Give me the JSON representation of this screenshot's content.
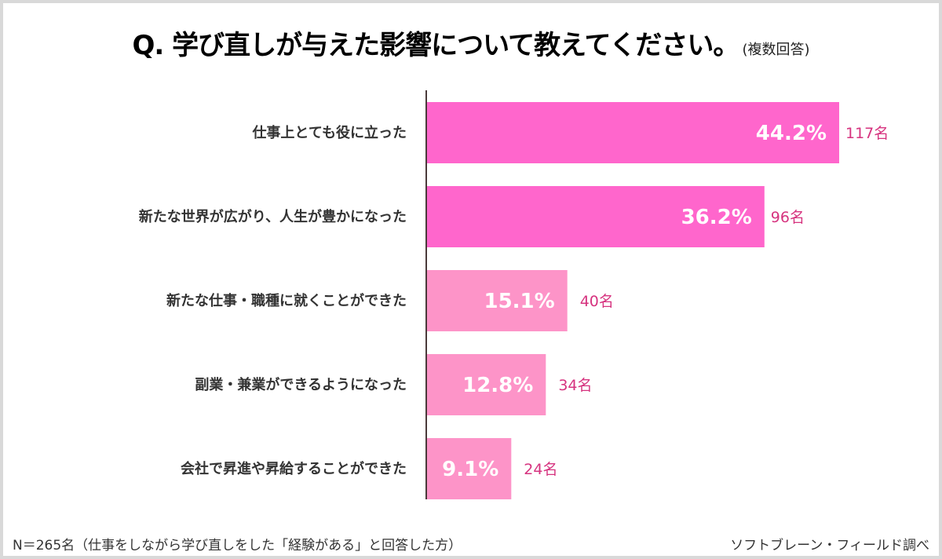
{
  "chart_data": {
    "type": "bar",
    "orientation": "horizontal",
    "title": "Q.  学び直しが与えた影響について教えてください。",
    "subtitle": "(複数回答)",
    "categories": [
      "仕事上とても役に立った",
      "新たな世界が広がり、人生が豊かになった",
      "新たな仕事・職種に就くことができた",
      "副業・兼業ができるようになった",
      "会社で昇進や昇給することができた"
    ],
    "values": [
      44.2,
      36.2,
      15.1,
      12.8,
      9.1
    ],
    "value_labels": [
      "44.2%",
      "36.2%",
      "15.1%",
      "12.8%",
      "9.1%"
    ],
    "counts": [
      "117名",
      "96名",
      "40名",
      "34名",
      "24名"
    ],
    "colors": [
      "#ff66cc",
      "#ff66cc",
      "#fd94c8",
      "#fd94c8",
      "#fd94c8"
    ],
    "count_color": "#d6337f",
    "xlim": [
      0,
      50
    ],
    "grid": false
  },
  "footer": {
    "note": "N＝265名（仕事をしながら学び直しをした「経験がある」と回答した方）",
    "source": "ソフトブレーン・フィールド調べ"
  }
}
